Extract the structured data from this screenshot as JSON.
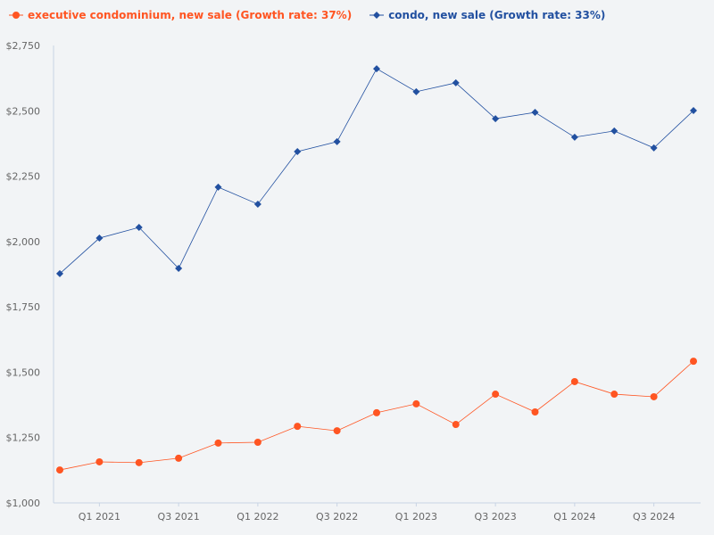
{
  "chart_data": {
    "type": "line",
    "categories": [
      "Q4 2020",
      "Q1 2021",
      "Q2 2021",
      "Q3 2021",
      "Q4 2021",
      "Q1 2022",
      "Q2 2022",
      "Q3 2022",
      "Q4 2022",
      "Q1 2023",
      "Q2 2023",
      "Q3 2023",
      "Q4 2023",
      "Q1 2024",
      "Q2 2024",
      "Q3 2024",
      "Q4 2024"
    ],
    "x_tick_labels": [
      "Q1 2021",
      "Q3 2021",
      "Q1 2022",
      "Q3 2022",
      "Q1 2023",
      "Q3 2023",
      "Q1 2024",
      "Q3 2024"
    ],
    "y_tick_labels": [
      "$1,000",
      "$1,250",
      "$1,500",
      "$1,750",
      "$2,000",
      "$2,250",
      "$2,500",
      "$2,750"
    ],
    "ylim": [
      1000,
      2750
    ],
    "grid": false,
    "legend_position": "top-left",
    "series": [
      {
        "name": "executive condominium, new sale (Growth rate: 37%)",
        "color": "#ff5522",
        "marker": "circle",
        "values": [
          1126,
          1157,
          1154,
          1171,
          1229,
          1232,
          1293,
          1276,
          1345,
          1379,
          1300,
          1416,
          1348,
          1464,
          1416,
          1406,
          1542
        ]
      },
      {
        "name": "condo, new sale (Growth rate: 33%)",
        "color": "#2250a0",
        "marker": "diamond",
        "values": [
          1877,
          2013,
          2054,
          1897,
          2208,
          2143,
          2344,
          2382,
          2661,
          2573,
          2607,
          2470,
          2494,
          2399,
          2423,
          2358,
          2501
        ]
      }
    ]
  }
}
